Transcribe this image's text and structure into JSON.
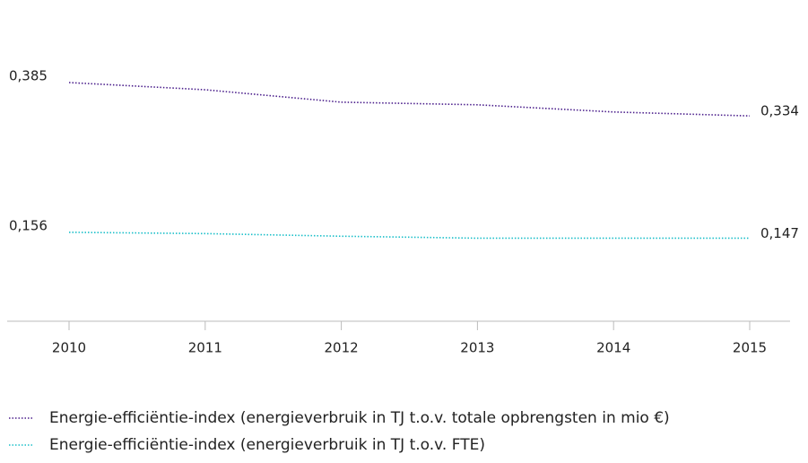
{
  "chart_data": {
    "type": "line",
    "categories": [
      "2010",
      "2011",
      "2012",
      "2013",
      "2014",
      "2015"
    ],
    "series": [
      {
        "name": "Energie-efficiëntie-index (energieverbruik in TJ t.o.v. totale opbrengsten in mio €)",
        "color": "#4b1f8c",
        "values": [
          0.385,
          0.374,
          0.355,
          0.351,
          0.34,
          0.334
        ],
        "value_labels": [
          "0,385",
          null,
          null,
          null,
          null,
          "0,334"
        ]
      },
      {
        "name": "Energie-efficiëntie-index (energieverbruik in TJ t.o.v. FTE)",
        "color": "#1bbfc9",
        "values": [
          0.156,
          0.154,
          0.15,
          0.147,
          0.147,
          0.147
        ],
        "value_labels": [
          "0,156",
          null,
          null,
          null,
          null,
          "0,147"
        ]
      }
    ],
    "ylim": [
      0.02,
      0.42
    ]
  }
}
